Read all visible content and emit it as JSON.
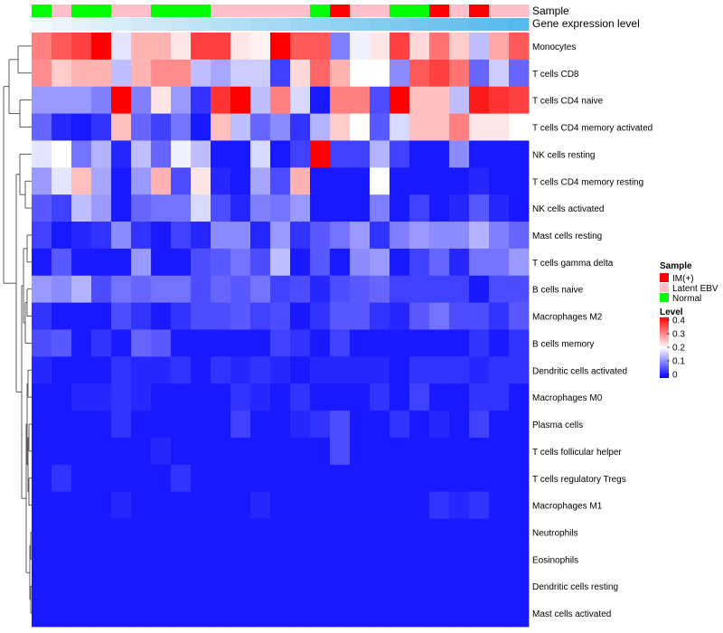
{
  "chart_data": {
    "type": "heatmap",
    "title": "",
    "annotation_labels": {
      "sample": "Sample",
      "expression": "Gene expression level"
    },
    "sample_groups": [
      "Normal",
      "Latent EBV",
      "Normal",
      "Normal",
      "Latent EBV",
      "Latent EBV",
      "Normal",
      "Normal",
      "Normal",
      "Latent EBV",
      "Latent EBV",
      "Latent EBV",
      "Latent EBV",
      "Latent EBV",
      "Normal",
      "IM(+)",
      "Latent EBV",
      "Latent EBV",
      "Normal",
      "Normal",
      "IM(+)",
      "Latent EBV",
      "IM(+)",
      "Latent EBV",
      "Latent EBV"
    ],
    "expression_levels": [
      0.02,
      0.04,
      0.06,
      0.08,
      0.1,
      0.12,
      0.14,
      0.16,
      0.18,
      0.2,
      0.22,
      0.24,
      0.26,
      0.28,
      0.3,
      0.32,
      0.34,
      0.36,
      0.38,
      0.4,
      0.42,
      0.44,
      0.46,
      0.48,
      0.5
    ],
    "rows": [
      "Monocytes",
      "T cells CD8",
      "T cells CD4 naive",
      "T cells CD4 memory activated",
      "NK cells resting",
      "T cells CD4 memory resting",
      "NK cells activated",
      "Mast cells resting",
      "T cells gamma delta",
      "B cells naive",
      "Macrophages M2",
      "B cells memory",
      "Dendritic cells activated",
      "Macrophages M0",
      "Plasma cells",
      "T cells follicular helper",
      "T cells regulatory  Tregs",
      "Macrophages M1",
      "Neutrophils",
      "Eosinophils",
      "Dendritic cells resting",
      "Mast cells activated"
    ],
    "values": [
      [
        0.3,
        0.33,
        0.35,
        0.4,
        0.18,
        0.26,
        0.26,
        0.22,
        0.35,
        0.35,
        0.22,
        0.21,
        0.4,
        0.33,
        0.33,
        0.1,
        0.19,
        0.22,
        0.35,
        0.23,
        0.31,
        0.24,
        0.15,
        0.27,
        0.33
      ],
      [
        0.29,
        0.24,
        0.26,
        0.26,
        0.15,
        0.26,
        0.29,
        0.29,
        0.15,
        0.13,
        0.16,
        0.16,
        0.05,
        0.23,
        0.32,
        0.26,
        0.2,
        0.2,
        0.11,
        0.33,
        0.35,
        0.31,
        0.08,
        0.16,
        0.08
      ],
      [
        0.12,
        0.12,
        0.12,
        0.1,
        0.4,
        0.1,
        0.22,
        0.12,
        0.04,
        0.36,
        0.4,
        0.15,
        0.3,
        0.17,
        0.02,
        0.3,
        0.3,
        0.06,
        0.4,
        0.25,
        0.25,
        0.15,
        0.38,
        0.36,
        0.35
      ],
      [
        0.08,
        0.03,
        0.02,
        0.04,
        0.25,
        0.08,
        0.05,
        0.09,
        0.02,
        0.25,
        0.15,
        0.08,
        0.11,
        0.04,
        0.14,
        0.24,
        0.2,
        0.07,
        0.17,
        0.25,
        0.25,
        0.3,
        0.22,
        0.22,
        0.2
      ],
      [
        0.18,
        0.2,
        0.09,
        0.14,
        0.03,
        0.15,
        0.08,
        0.19,
        0.15,
        0.02,
        0.02,
        0.17,
        0.02,
        0.05,
        0.4,
        0.05,
        0.05,
        0.14,
        0.05,
        0.02,
        0.02,
        0.11,
        0.02,
        0.02,
        0.02
      ],
      [
        0.12,
        0.18,
        0.25,
        0.13,
        0.02,
        0.12,
        0.26,
        0.06,
        0.22,
        0.03,
        0.02,
        0.13,
        0.06,
        0.26,
        0.02,
        0.02,
        0.02,
        0.2,
        0.02,
        0.02,
        0.02,
        0.02,
        0.03,
        0.02,
        0.02
      ],
      [
        0.07,
        0.05,
        0.15,
        0.12,
        0.02,
        0.08,
        0.09,
        0.09,
        0.17,
        0.06,
        0.03,
        0.1,
        0.09,
        0.12,
        0.02,
        0.02,
        0.02,
        0.1,
        0.02,
        0.05,
        0.02,
        0.03,
        0.07,
        0.03,
        0.02
      ],
      [
        0.05,
        0.02,
        0.03,
        0.04,
        0.11,
        0.04,
        0.02,
        0.05,
        0.03,
        0.11,
        0.11,
        0.03,
        0.12,
        0.04,
        0.07,
        0.09,
        0.12,
        0.04,
        0.1,
        0.12,
        0.11,
        0.11,
        0.14,
        0.1,
        0.08
      ],
      [
        0.02,
        0.07,
        0.02,
        0.02,
        0.02,
        0.12,
        0.02,
        0.02,
        0.06,
        0.07,
        0.09,
        0.06,
        0.15,
        0.02,
        0.07,
        0.02,
        0.11,
        0.12,
        0.02,
        0.05,
        0.08,
        0.03,
        0.09,
        0.09,
        0.12
      ],
      [
        0.12,
        0.11,
        0.14,
        0.06,
        0.09,
        0.08,
        0.09,
        0.09,
        0.06,
        0.08,
        0.07,
        0.09,
        0.05,
        0.06,
        0.03,
        0.06,
        0.07,
        0.08,
        0.05,
        0.05,
        0.05,
        0.05,
        0.02,
        0.06,
        0.06
      ],
      [
        0.04,
        0.02,
        0.02,
        0.02,
        0.06,
        0.04,
        0.02,
        0.04,
        0.06,
        0.06,
        0.07,
        0.05,
        0.06,
        0.02,
        0.04,
        0.07,
        0.07,
        0.04,
        0.03,
        0.07,
        0.09,
        0.06,
        0.06,
        0.04,
        0.07
      ],
      [
        0.06,
        0.07,
        0.02,
        0.04,
        0.02,
        0.08,
        0.07,
        0.02,
        0.02,
        0.02,
        0.02,
        0.02,
        0.05,
        0.04,
        0.02,
        0.05,
        0.02,
        0.02,
        0.02,
        0.02,
        0.02,
        0.02,
        0.04,
        0.02,
        0.04
      ],
      [
        0.03,
        0.02,
        0.02,
        0.02,
        0.04,
        0.03,
        0.03,
        0.04,
        0.02,
        0.04,
        0.03,
        0.04,
        0.03,
        0.02,
        0.03,
        0.03,
        0.03,
        0.03,
        0.02,
        0.04,
        0.04,
        0.04,
        0.03,
        0.04,
        0.04
      ],
      [
        0.02,
        0.02,
        0.03,
        0.03,
        0.04,
        0.03,
        0.02,
        0.02,
        0.02,
        0.02,
        0.04,
        0.03,
        0.02,
        0.04,
        0.02,
        0.02,
        0.02,
        0.04,
        0.02,
        0.05,
        0.02,
        0.02,
        0.04,
        0.04,
        0.02
      ],
      [
        0.02,
        0.02,
        0.02,
        0.02,
        0.04,
        0.02,
        0.02,
        0.02,
        0.02,
        0.02,
        0.05,
        0.02,
        0.02,
        0.03,
        0.04,
        0.06,
        0.02,
        0.02,
        0.04,
        0.02,
        0.03,
        0.02,
        0.05,
        0.02,
        0.02
      ],
      [
        0.02,
        0.02,
        0.02,
        0.02,
        0.02,
        0.02,
        0.03,
        0.02,
        0.02,
        0.02,
        0.02,
        0.02,
        0.02,
        0.02,
        0.02,
        0.06,
        0.02,
        0.02,
        0.02,
        0.02,
        0.02,
        0.02,
        0.02,
        0.02,
        0.02
      ],
      [
        0.02,
        0.04,
        0.02,
        0.02,
        0.02,
        0.02,
        0.02,
        0.04,
        0.02,
        0.02,
        0.02,
        0.02,
        0.02,
        0.02,
        0.02,
        0.02,
        0.02,
        0.02,
        0.02,
        0.02,
        0.02,
        0.02,
        0.02,
        0.02,
        0.02
      ],
      [
        0.02,
        0.02,
        0.02,
        0.02,
        0.03,
        0.02,
        0.02,
        0.02,
        0.02,
        0.02,
        0.02,
        0.03,
        0.02,
        0.02,
        0.02,
        0.02,
        0.02,
        0.02,
        0.02,
        0.02,
        0.04,
        0.03,
        0.04,
        0.02,
        0.02
      ],
      [
        0.02,
        0.02,
        0.02,
        0.02,
        0.02,
        0.02,
        0.02,
        0.02,
        0.02,
        0.02,
        0.02,
        0.02,
        0.02,
        0.02,
        0.02,
        0.02,
        0.02,
        0.02,
        0.02,
        0.02,
        0.02,
        0.02,
        0.02,
        0.02,
        0.02
      ],
      [
        0.02,
        0.02,
        0.02,
        0.02,
        0.02,
        0.02,
        0.02,
        0.02,
        0.02,
        0.02,
        0.02,
        0.02,
        0.02,
        0.02,
        0.02,
        0.02,
        0.02,
        0.02,
        0.02,
        0.02,
        0.02,
        0.02,
        0.02,
        0.02,
        0.02
      ],
      [
        0.02,
        0.02,
        0.02,
        0.02,
        0.02,
        0.02,
        0.02,
        0.02,
        0.02,
        0.02,
        0.02,
        0.02,
        0.02,
        0.02,
        0.02,
        0.02,
        0.02,
        0.02,
        0.02,
        0.02,
        0.02,
        0.02,
        0.02,
        0.02,
        0.02
      ],
      [
        0.02,
        0.02,
        0.02,
        0.02,
        0.02,
        0.02,
        0.02,
        0.02,
        0.02,
        0.02,
        0.02,
        0.02,
        0.02,
        0.02,
        0.02,
        0.02,
        0.02,
        0.02,
        0.02,
        0.02,
        0.02,
        0.02,
        0.02,
        0.02,
        0.02
      ]
    ],
    "legend": {
      "sample_title": "Sample",
      "sample_items": [
        {
          "label": "IM(+)",
          "color": "#ff0000"
        },
        {
          "label": "Latent EBV",
          "color": "#ffc0cb"
        },
        {
          "label": "Normal",
          "color": "#00ff00"
        }
      ],
      "level_title": "Level",
      "level_ticks": [
        "0.4",
        "0.3",
        "0.2",
        "0.1",
        "0"
      ],
      "level_range": [
        0,
        0.4
      ],
      "placement": "right"
    },
    "color_scale": {
      "low": "#0000ff",
      "mid": "#ffffff",
      "high": "#ff0000",
      "domain": [
        0,
        0.2,
        0.4
      ]
    },
    "expression_color_scale": {
      "low": "#f2f7fb",
      "high": "#56b9ec"
    }
  }
}
